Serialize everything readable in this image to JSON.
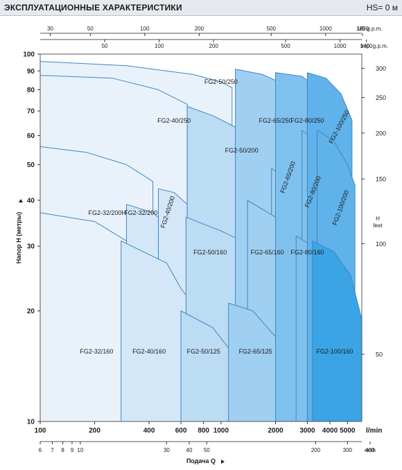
{
  "header": {
    "title": "ЭКСПЛУАТАЦИОННЫЕ ХАРАКТЕРИСТИКИ",
    "hs": "HS= 0 м"
  },
  "colors": {
    "level1": "#e9f2fb",
    "level2": "#d3e7f8",
    "level3": "#bcdcf4",
    "level4": "#9fcff1",
    "level5": "#7fc1ee",
    "level6": "#5fb2ea",
    "level7": "#3aa4e4",
    "outline": "#3f86c0",
    "header_bg": "#e6eaef"
  },
  "chart_data": {
    "type": "area",
    "title": "",
    "xscale": "log",
    "yscale": "log",
    "x_unit": "l/min",
    "xlim": [
      100,
      6000
    ],
    "ylim": [
      10,
      100
    ],
    "axes": {
      "bottom_unit": "l/min",
      "bottom_ticks": [
        "100",
        "200",
        "400",
        "600",
        "800",
        "1000",
        "2000",
        "3000",
        "4000",
        "5000"
      ],
      "m3h_unit": "m³/h",
      "m3h_ticks": [
        "6",
        "7",
        "8",
        "9",
        "10",
        "30",
        "40",
        "50",
        "200",
        "300",
        "400"
      ],
      "top_us_unit": "US g.p.m.",
      "top_us_ticks": [
        "30",
        "50",
        "100",
        "200",
        "500",
        "1000",
        "1600"
      ],
      "top_imp_unit": "Imp. g.p.m.",
      "top_imp_ticks": [
        "50",
        "100",
        "200",
        "500",
        "1000",
        "1400"
      ],
      "left_ticks": [
        "10",
        "20",
        "30",
        "40",
        "50",
        "60",
        "70",
        "80",
        "90",
        "100"
      ],
      "right_unit_line1": "H",
      "right_unit_line2": "feet",
      "right_ticks": [
        "50",
        "100",
        "150",
        "200",
        "250",
        "300"
      ],
      "xlabel": "Подача Q",
      "ylabel": "Напор H (метры)"
    },
    "series": [
      {
        "name": "FG2-50/250",
        "level": 1,
        "points": [
          [
            100,
            95.5
          ],
          [
            300,
            93
          ],
          [
            700,
            88
          ],
          [
            1000,
            84
          ],
          [
            1150,
            81
          ]
        ]
      },
      {
        "name": "FG2-40/250",
        "level": 1,
        "points": [
          [
            100,
            87.5
          ],
          [
            250,
            86
          ],
          [
            450,
            80
          ],
          [
            650,
            73
          ]
        ]
      },
      {
        "name": "FG2-32/200H",
        "level": 1,
        "points": [
          [
            100,
            56
          ],
          [
            180,
            54
          ],
          [
            300,
            50
          ],
          [
            420,
            45
          ]
        ]
      },
      {
        "name": "FG2-32/160",
        "level": 1,
        "points": [
          [
            100,
            37
          ],
          [
            200,
            35
          ],
          [
            300,
            31
          ],
          [
            450,
            23
          ],
          [
            520,
            20
          ],
          [
            620,
            16
          ],
          [
            800,
            11.5
          ]
        ]
      },
      {
        "name": "FG2-32/200",
        "level": 2,
        "points": [
          [
            300,
            39
          ],
          [
            420,
            37
          ],
          [
            480,
            35
          ]
        ]
      },
      {
        "name": "FG2-40/200",
        "level": 2,
        "points": [
          [
            450,
            43
          ],
          [
            550,
            42
          ],
          [
            650,
            39
          ]
        ]
      },
      {
        "name": "FG2-40/160",
        "level": 2,
        "points": [
          [
            280,
            31
          ],
          [
            500,
            27
          ],
          [
            600,
            23
          ],
          [
            750,
            20
          ],
          [
            850,
            17
          ]
        ]
      },
      {
        "name": "FG2-50/200",
        "level": 3,
        "points": [
          [
            650,
            72
          ],
          [
            900,
            68
          ],
          [
            1300,
            62
          ],
          [
            1600,
            56
          ],
          [
            1900,
            50
          ]
        ]
      },
      {
        "name": "FG2-50/160",
        "level": 3,
        "points": [
          [
            640,
            36
          ],
          [
            1000,
            33
          ],
          [
            1300,
            31
          ],
          [
            1700,
            27
          ]
        ]
      },
      {
        "name": "FG2-50/125",
        "level": 3,
        "points": [
          [
            600,
            20
          ],
          [
            900,
            18
          ],
          [
            1200,
            15
          ],
          [
            1400,
            12
          ]
        ]
      },
      {
        "name": "FG2-65/250",
        "level": 4,
        "points": [
          [
            1200,
            91
          ],
          [
            1700,
            88
          ],
          [
            2200,
            83
          ],
          [
            2600,
            74
          ],
          [
            2800,
            62
          ]
        ]
      },
      {
        "name": "FG2-65/200",
        "level": 4,
        "points": [
          [
            1900,
            49
          ],
          [
            2300,
            45
          ],
          [
            2700,
            40
          ],
          [
            3000,
            37
          ]
        ]
      },
      {
        "name": "FG2-65/160",
        "level": 4,
        "points": [
          [
            1400,
            40
          ],
          [
            2000,
            36
          ],
          [
            2600,
            31
          ],
          [
            3100,
            26
          ]
        ]
      },
      {
        "name": "FG2-65/125",
        "level": 4,
        "points": [
          [
            1100,
            21
          ],
          [
            1500,
            20
          ],
          [
            2000,
            17
          ],
          [
            2500,
            13
          ]
        ]
      },
      {
        "name": "FG2-80/250",
        "level": 5,
        "points": [
          [
            2000,
            89
          ],
          [
            2800,
            87
          ],
          [
            3400,
            81
          ],
          [
            3800,
            72
          ]
        ]
      },
      {
        "name": "FG2-80/200",
        "level": 5,
        "points": [
          [
            2800,
            62
          ],
          [
            3400,
            58
          ],
          [
            4000,
            50
          ],
          [
            4500,
            43
          ]
        ]
      },
      {
        "name": "FG2-80/160",
        "level": 5,
        "points": [
          [
            2600,
            32
          ],
          [
            3200,
            30
          ],
          [
            3800,
            26
          ],
          [
            4200,
            22
          ]
        ]
      },
      {
        "name": "FG2-100/250",
        "level": 6,
        "points": [
          [
            3000,
            89
          ],
          [
            3800,
            86
          ],
          [
            4600,
            78
          ],
          [
            5300,
            66
          ]
        ]
      },
      {
        "name": "FG2-100/200",
        "level": 6,
        "points": [
          [
            3400,
            62
          ],
          [
            4200,
            58
          ],
          [
            5000,
            50
          ],
          [
            5500,
            44
          ]
        ]
      },
      {
        "name": "FG2-100/160",
        "level": 7,
        "points": [
          [
            3200,
            31
          ],
          [
            4200,
            29
          ],
          [
            5200,
            25
          ],
          [
            6000,
            19
          ]
        ]
      }
    ],
    "labels": [
      {
        "text": "FG2-50/250",
        "x": 1000,
        "y": 83,
        "angle": 0
      },
      {
        "text": "FG2-40/250",
        "x": 550,
        "y": 65,
        "angle": 0
      },
      {
        "text": "FG2-65/250",
        "x": 2000,
        "y": 65,
        "angle": 0
      },
      {
        "text": "FG2-80/250",
        "x": 3000,
        "y": 65,
        "angle": 0
      },
      {
        "text": "FG2-100/250",
        "x": 4600,
        "y": 63,
        "angle": -62
      },
      {
        "text": "FG2-50/200",
        "x": 1300,
        "y": 54,
        "angle": 0
      },
      {
        "text": "FG2-65/200",
        "x": 2400,
        "y": 46,
        "angle": -70
      },
      {
        "text": "FG2-80/200",
        "x": 3300,
        "y": 42,
        "angle": -68
      },
      {
        "text": "FG2-100/200",
        "x": 4700,
        "y": 38,
        "angle": -70
      },
      {
        "text": "FG2-32/200H",
        "x": 235,
        "y": 36.5,
        "angle": 0
      },
      {
        "text": "FG2-32/200",
        "x": 360,
        "y": 36.5,
        "angle": 0
      },
      {
        "text": "FG2-40/200",
        "x": 520,
        "y": 37,
        "angle": -72
      },
      {
        "text": "FG2-50/160",
        "x": 870,
        "y": 28.5,
        "angle": 0
      },
      {
        "text": "FG2-65/160",
        "x": 1800,
        "y": 28.5,
        "angle": 0
      },
      {
        "text": "FG2-80/160",
        "x": 3000,
        "y": 28.5,
        "angle": 0
      },
      {
        "text": "FG2-32/160",
        "x": 205,
        "y": 15.3,
        "angle": 0
      },
      {
        "text": "FG2-40/160",
        "x": 400,
        "y": 15.3,
        "angle": 0
      },
      {
        "text": "FG2-50/125",
        "x": 800,
        "y": 15.3,
        "angle": 0
      },
      {
        "text": "FG2-65/125",
        "x": 1550,
        "y": 15.3,
        "angle": 0
      },
      {
        "text": "FG2-100/160",
        "x": 4250,
        "y": 15.3,
        "angle": 0
      }
    ]
  }
}
